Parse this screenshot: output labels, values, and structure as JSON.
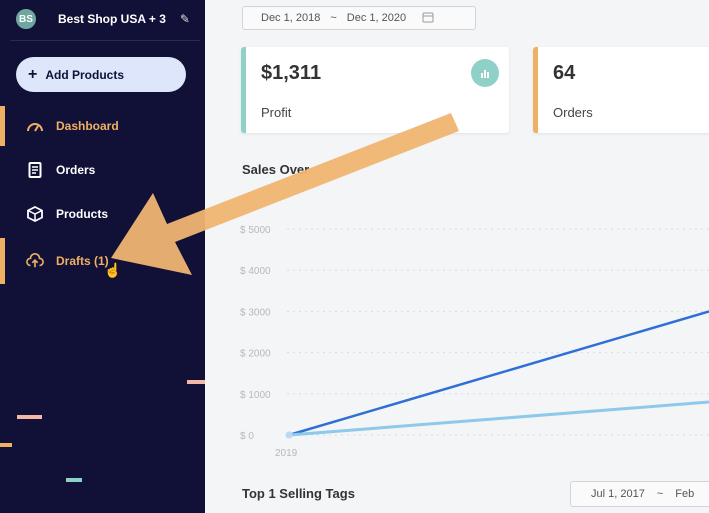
{
  "sidebar": {
    "store": {
      "initials": "BS",
      "name": "Best Shop USA + 3",
      "edit_icon": "pencil-icon"
    },
    "add_button": {
      "label": "Add Products",
      "icon": "plus-icon"
    },
    "nav": [
      {
        "label": "Dashboard",
        "icon": "speedometer-icon",
        "active": true
      },
      {
        "label": "Orders",
        "icon": "receipt-icon",
        "active": false
      },
      {
        "label": "Products",
        "icon": "cube-icon",
        "active": false
      },
      {
        "label": "Drafts (1)",
        "icon": "cloud-upload-icon",
        "active": false
      }
    ]
  },
  "main": {
    "date_range": {
      "start": "Dec 1, 2018",
      "separator": "~",
      "end": "Dec 1, 2020",
      "icon": "calendar-icon"
    },
    "stats": [
      {
        "value": "$1,311",
        "label": "Profit",
        "accent": "#8fd0c8",
        "icon": "bar-chart-icon"
      },
      {
        "value": "64",
        "label": "Orders",
        "accent": "#f0b063"
      }
    ],
    "sales_title": "Sales Over",
    "tags_title": "Top 1 Selling Tags",
    "tags_date": {
      "start": "Jul 1, 2017",
      "separator": "~",
      "end": "Feb"
    }
  },
  "chart_data": {
    "type": "line",
    "title": "Sales Over",
    "y_ticks": [
      "$ 5000",
      "$ 4000",
      "$ 3000",
      "$ 2000",
      "$ 1000",
      "$ 0"
    ],
    "x_ticks": [
      "2019"
    ],
    "ylim": [
      0,
      5000
    ],
    "grid": true,
    "series": [
      {
        "color": "#2f6fd6",
        "points": [
          [
            0,
            0
          ],
          [
            1,
            3000
          ]
        ]
      },
      {
        "color": "#8ec9ec",
        "points": [
          [
            0,
            0
          ],
          [
            1,
            800
          ]
        ]
      }
    ]
  },
  "colors": {
    "sidebar_bg": "#111037",
    "accent_orange": "#f0b063",
    "accent_teal": "#8fd0c8",
    "annotation_arrow": "#f0b571"
  }
}
